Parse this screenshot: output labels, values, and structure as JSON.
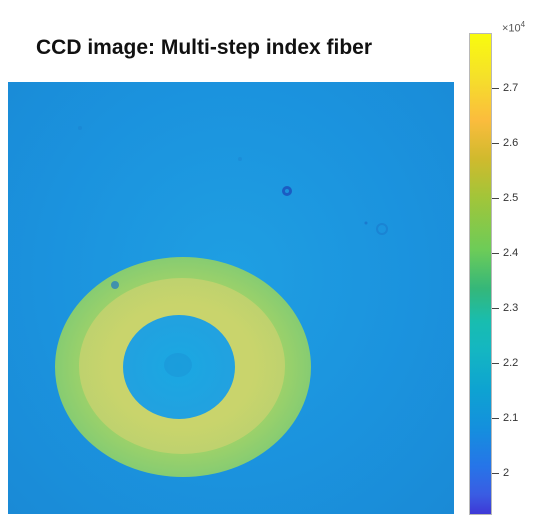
{
  "title": "CCD image: Multi-step index fiber",
  "colorbar": {
    "exponent_base": "×10",
    "exponent_power": "4",
    "ticks": [
      "2.7",
      "2.6",
      "2.5",
      "2.4",
      "2.3",
      "2.2",
      "2.1",
      "2"
    ],
    "colormap": "parula"
  },
  "image": {
    "background_color": "#1b93de",
    "outer_ring_color": "#8ecf6e",
    "inner_ring_color": "#c8d36e",
    "core_color": "#1b9ddf"
  }
}
